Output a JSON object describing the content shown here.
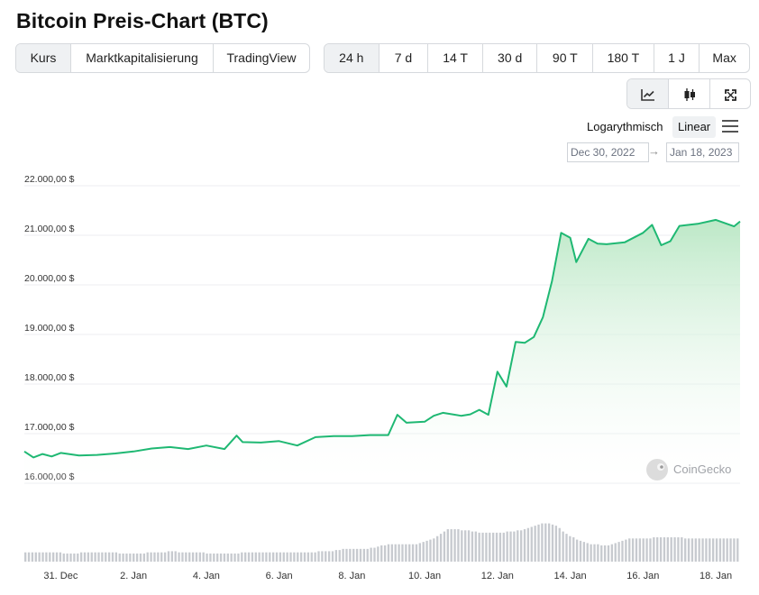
{
  "title": "Bitcoin Preis-Chart (BTC)",
  "view_tabs": [
    "Kurs",
    "Marktkapitalisierung",
    "TradingView"
  ],
  "view_active": 0,
  "range_tabs": [
    "24 h",
    "7 d",
    "14 T",
    "30 d",
    "90 T",
    "180 T",
    "1 J",
    "Max"
  ],
  "range_active": 0,
  "chart_mode_icons": [
    "line-chart-icon",
    "candlestick-icon",
    "fullscreen-icon"
  ],
  "scale": {
    "log_label": "Logarythmisch",
    "linear_label": "Linear",
    "active": "linear"
  },
  "date_range": {
    "from": "Dec 30, 2022",
    "arrow": "→",
    "to": "Jan 18, 2023"
  },
  "watermark": "CoinGecko",
  "colors": {
    "line": "#1fb873",
    "fill": "#c6eccf",
    "volume": "#c7cacf",
    "grid": "#eceef1"
  },
  "chart_data": {
    "type": "area",
    "title": "",
    "xlabel": "",
    "ylabel": "",
    "ylim": [
      15500,
      22300
    ],
    "yticks": [
      16000,
      17000,
      18000,
      19000,
      20000,
      21000,
      22000
    ],
    "ytick_labels": [
      "16.000,00 $",
      "17.000,00 $",
      "18.000,00 $",
      "19.000,00 $",
      "20.000,00 $",
      "21.000,00 $",
      "22.000,00 $"
    ],
    "xlim": [
      "2022-12-30",
      "2023-01-18T16:00"
    ],
    "xticks": [
      "2022-12-31",
      "2023-01-02",
      "2023-01-04",
      "2023-01-06",
      "2023-01-08",
      "2023-01-10",
      "2023-01-12",
      "2023-01-14",
      "2023-01-16",
      "2023-01-18"
    ],
    "xtick_labels": [
      "31. Dec",
      "2. Jan",
      "4. Jan",
      "6. Jan",
      "8. Jan",
      "10. Jan",
      "12. Jan",
      "14. Jan",
      "16. Jan",
      "18. Jan"
    ],
    "grid": true,
    "series": [
      {
        "x": [
          "2022-12-30T00:00",
          "2022-12-30T06:00",
          "2022-12-30T12:00",
          "2022-12-30T18:00",
          "2022-12-31T00:00",
          "2022-12-31T12:00",
          "2023-01-01T00:00",
          "2023-01-01T12:00",
          "2023-01-02T00:00",
          "2023-01-02T12:00",
          "2023-01-03T00:00",
          "2023-01-03T12:00",
          "2023-01-04T00:00",
          "2023-01-04T12:00",
          "2023-01-04T20:00",
          "2023-01-05T00:00",
          "2023-01-05T12:00",
          "2023-01-06T00:00",
          "2023-01-06T12:00",
          "2023-01-07T00:00",
          "2023-01-07T12:00",
          "2023-01-08T00:00",
          "2023-01-08T12:00",
          "2023-01-09T00:00",
          "2023-01-09T06:00",
          "2023-01-09T12:00",
          "2023-01-10T00:00",
          "2023-01-10T06:00",
          "2023-01-10T12:00",
          "2023-01-11T00:00",
          "2023-01-11T06:00",
          "2023-01-11T12:00",
          "2023-01-11T18:00",
          "2023-01-12T00:00",
          "2023-01-12T06:00",
          "2023-01-12T12:00",
          "2023-01-12T18:00",
          "2023-01-13T00:00",
          "2023-01-13T06:00",
          "2023-01-13T12:00",
          "2023-01-13T18:00",
          "2023-01-14T00:00",
          "2023-01-14T04:00",
          "2023-01-14T12:00",
          "2023-01-14T18:00",
          "2023-01-15T00:00",
          "2023-01-15T12:00",
          "2023-01-16T00:00",
          "2023-01-16T06:00",
          "2023-01-16T12:00",
          "2023-01-16T18:00",
          "2023-01-17T00:00",
          "2023-01-17T12:00",
          "2023-01-18T00:00",
          "2023-01-18T12:00",
          "2023-01-18T16:00"
        ],
        "y": [
          16640,
          16520,
          16590,
          16540,
          16610,
          16560,
          16570,
          16600,
          16640,
          16700,
          16730,
          16690,
          16760,
          16690,
          16960,
          16830,
          16820,
          16850,
          16760,
          16930,
          16950,
          16950,
          16970,
          16970,
          17380,
          17220,
          17240,
          17360,
          17420,
          17360,
          17390,
          17480,
          17380,
          18250,
          17950,
          18850,
          18830,
          18950,
          19350,
          20080,
          21050,
          20950,
          20460,
          20930,
          20830,
          20820,
          20860,
          21050,
          21210,
          20800,
          20880,
          21190,
          21230,
          21310,
          21180,
          21280
        ]
      }
    ],
    "volume": [
      8,
      8,
      8,
      8,
      8,
      8,
      8,
      8,
      8,
      8,
      8,
      7,
      7,
      7,
      7,
      7,
      8,
      8,
      8,
      8,
      8,
      8,
      8,
      8,
      8,
      8,
      8,
      7,
      7,
      7,
      7,
      7,
      7,
      7,
      7,
      8,
      8,
      8,
      8,
      8,
      8,
      9,
      9,
      9,
      8,
      8,
      8,
      8,
      8,
      8,
      8,
      8,
      7,
      7,
      7,
      7,
      7,
      7,
      7,
      7,
      7,
      7,
      8,
      8,
      8,
      8,
      8,
      8,
      8,
      8,
      8,
      8,
      8,
      8,
      8,
      8,
      8,
      8,
      8,
      8,
      8,
      8,
      8,
      8,
      9,
      9,
      9,
      9,
      9,
      10,
      10,
      11,
      11,
      11,
      11,
      11,
      11,
      11,
      11,
      12,
      12,
      13,
      14,
      14,
      15,
      15,
      15,
      15,
      15,
      15,
      15,
      15,
      15,
      16,
      17,
      18,
      19,
      20,
      22,
      24,
      26,
      28,
      28,
      28,
      28,
      27,
      27,
      27,
      26,
      26,
      25,
      25,
      25,
      25,
      25,
      25,
      25,
      25,
      26,
      26,
      26,
      27,
      27,
      28,
      29,
      30,
      31,
      32,
      33,
      33,
      33,
      32,
      31,
      29,
      26,
      24,
      22,
      21,
      19,
      18,
      17,
      16,
      15,
      15,
      15,
      14,
      14,
      14,
      15,
      16,
      17,
      18,
      19,
      20,
      20,
      20,
      20,
      20,
      20,
      20,
      21,
      21,
      21,
      21,
      21,
      21,
      21,
      21,
      21,
      20,
      20,
      20,
      20,
      20,
      20,
      20,
      20,
      20,
      20,
      20,
      20,
      20,
      20,
      20,
      20
    ]
  }
}
